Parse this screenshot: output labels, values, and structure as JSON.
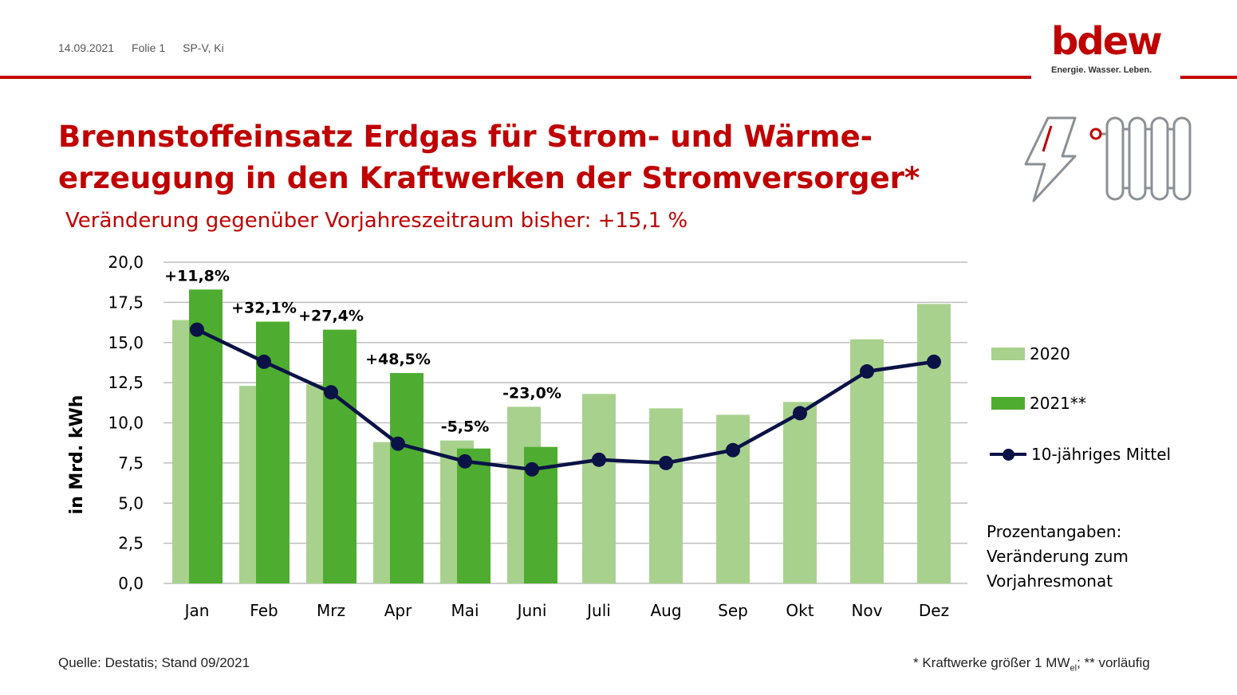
{
  "header": {
    "date": "14.09.2021",
    "slide": "Folie 1",
    "author": "SP-V, Ki"
  },
  "logo": {
    "word": "bdew",
    "tagline": "Energie. Wasser. Leben."
  },
  "decor_icons": [
    "lightning-icon",
    "radiator-icon"
  ],
  "title": "Brennstoffeinsatz Erdgas für Strom- und Wärme-erzeugung in den Kraftwerken der Stromversorger*",
  "subtitle": "Veränderung gegenüber Vorjahreszeitraum bisher: +15,1 %",
  "legend": {
    "series_2020": "2020",
    "series_2021": "2021**",
    "series_mean": "10-jähriges Mittel"
  },
  "note": {
    "line1": "Prozentangaben:",
    "line2": "Veränderung zum",
    "line3": "Vorjahresmonat"
  },
  "footer": {
    "source": "Quelle: Destatis; Stand 09/2021",
    "footnote_pre": "* Kraftwerke größer 1 MW",
    "footnote_sub": "el",
    "footnote_post": "; ** vorläufig"
  },
  "chart_data": {
    "type": "bar",
    "categories": [
      "Jan",
      "Feb",
      "Mrz",
      "Apr",
      "Mai",
      "Juni",
      "Juli",
      "Aug",
      "Sep",
      "Okt",
      "Nov",
      "Dez"
    ],
    "series": [
      {
        "name": "2020",
        "kind": "bar",
        "color": "#a9d18e",
        "values": [
          16.4,
          12.3,
          12.4,
          8.8,
          8.9,
          11.0,
          11.8,
          10.9,
          10.5,
          11.3,
          15.2,
          17.4
        ]
      },
      {
        "name": "2021**",
        "kind": "bar",
        "color": "#4ead30",
        "values": [
          18.3,
          16.3,
          15.8,
          13.1,
          8.4,
          8.5,
          null,
          null,
          null,
          null,
          null,
          null
        ]
      },
      {
        "name": "10-jähriges Mittel",
        "kind": "line",
        "color": "#0a1246",
        "values": [
          15.8,
          13.8,
          11.9,
          8.7,
          7.6,
          7.1,
          7.7,
          7.5,
          8.3,
          10.6,
          13.2,
          13.8
        ]
      }
    ],
    "data_labels": [
      "+11,8%",
      "+32,1%",
      "+27,4%",
      "+48,5%",
      "-5,5%",
      "-23,0%",
      "",
      "",
      "",
      "",
      "",
      ""
    ],
    "ylabel": "in Mrd. kWh",
    "ylim": [
      0,
      20
    ],
    "yticks": [
      "0,0",
      "2,5",
      "5,0",
      "7,5",
      "10,0",
      "12,5",
      "15,0",
      "17,5",
      "20,0"
    ],
    "grid": true,
    "legend_position": "right"
  }
}
